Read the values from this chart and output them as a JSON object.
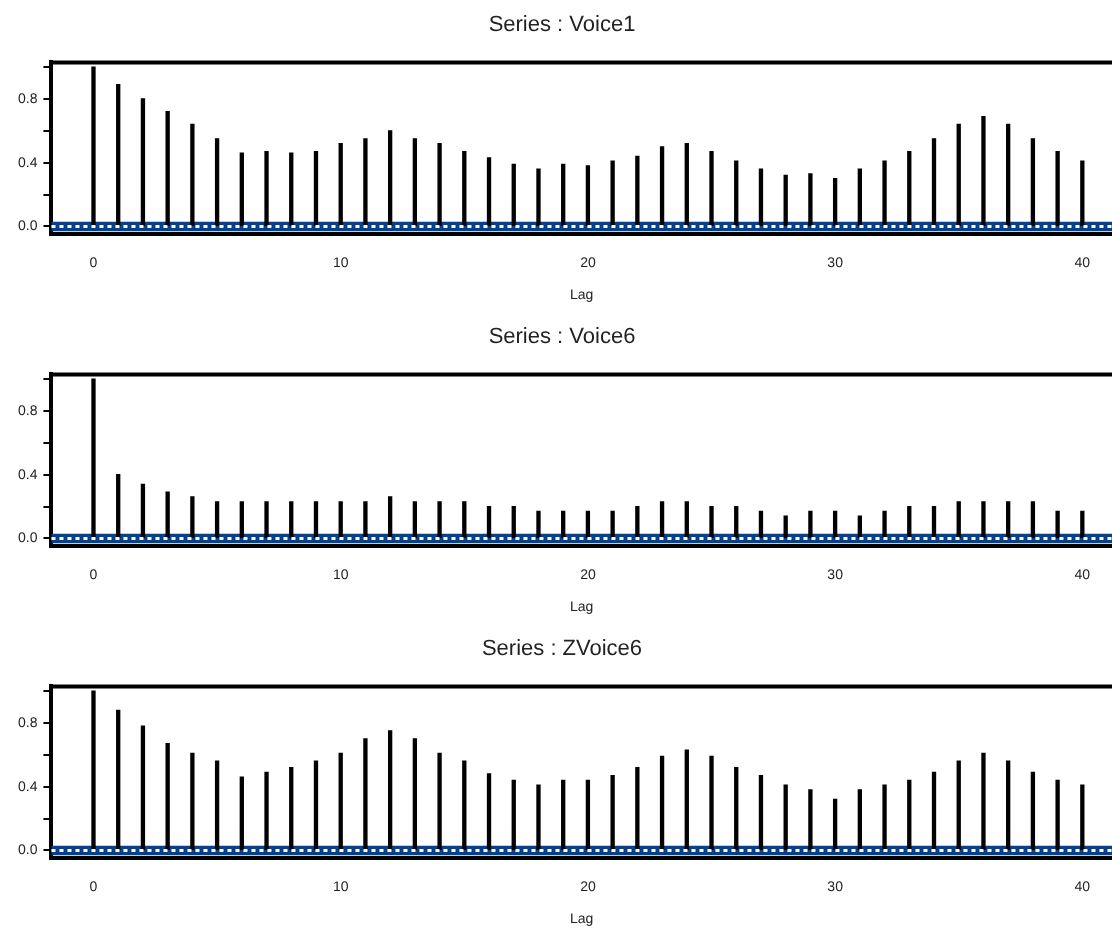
{
  "chart_data": [
    {
      "type": "bar",
      "title": "Series : Voice1",
      "xlabel": "Lag",
      "x": [
        0,
        1,
        2,
        3,
        4,
        5,
        6,
        7,
        8,
        9,
        10,
        11,
        12,
        13,
        14,
        15,
        16,
        17,
        18,
        19,
        20,
        21,
        22,
        23,
        24,
        25,
        26,
        27,
        28,
        29,
        30,
        31,
        32,
        33,
        34,
        35,
        36,
        37,
        38,
        39,
        40
      ],
      "series": [
        {
          "color": "#000000",
          "values": [
            1.0,
            0.89,
            0.8,
            0.72,
            0.64,
            0.55,
            0.46,
            0.47,
            0.46,
            0.47,
            0.52,
            0.55,
            0.6,
            0.55,
            0.52,
            0.47,
            0.43,
            0.39,
            0.36,
            0.39,
            0.38,
            0.41,
            0.44,
            0.5,
            0.52,
            0.47,
            0.41,
            0.36,
            0.32,
            0.33,
            0.3,
            0.36,
            0.41,
            0.47,
            0.55,
            0.64,
            0.69,
            0.64,
            0.55,
            0.47,
            0.41
          ]
        }
      ],
      "xlim": [
        -1.7,
        41.2
      ],
      "xticks": [
        0,
        10,
        20,
        30,
        40
      ],
      "ylim": [
        -0.05,
        1.03
      ],
      "yticks": [
        {
          "value": 0,
          "label": "0.0"
        },
        {
          "value": 0.2,
          "label": null
        },
        {
          "value": 0.4,
          "label": "0.4"
        },
        {
          "value": 0.6,
          "label": null
        },
        {
          "value": 0.8,
          "label": "0.8"
        },
        {
          "value": 1.0,
          "label": null
        }
      ],
      "bands": [
        {
          "axis": "y",
          "from": -0.03,
          "to": 0.03,
          "color": "#0b3f86"
        }
      ],
      "ref_lines": [
        {
          "axis": "y",
          "value": 0,
          "color": "#ffffff",
          "line_style": "dotted"
        }
      ],
      "grid": false,
      "legend": false
    },
    {
      "type": "bar",
      "title": "Series : Voice6",
      "xlabel": "Lag",
      "x": [
        0,
        1,
        2,
        3,
        4,
        5,
        6,
        7,
        8,
        9,
        10,
        11,
        12,
        13,
        14,
        15,
        16,
        17,
        18,
        19,
        20,
        21,
        22,
        23,
        24,
        25,
        26,
        27,
        28,
        29,
        30,
        31,
        32,
        33,
        34,
        35,
        36,
        37,
        38,
        39,
        40
      ],
      "series": [
        {
          "color": "#000000",
          "values": [
            1.0,
            0.4,
            0.34,
            0.29,
            0.26,
            0.23,
            0.23,
            0.23,
            0.23,
            0.23,
            0.23,
            0.23,
            0.26,
            0.23,
            0.23,
            0.23,
            0.2,
            0.2,
            0.17,
            0.17,
            0.17,
            0.17,
            0.2,
            0.23,
            0.23,
            0.2,
            0.2,
            0.17,
            0.14,
            0.17,
            0.17,
            0.14,
            0.17,
            0.2,
            0.2,
            0.23,
            0.23,
            0.23,
            0.23,
            0.17,
            0.17
          ]
        }
      ],
      "xlim": [
        -1.7,
        41.2
      ],
      "xticks": [
        0,
        10,
        20,
        30,
        40
      ],
      "ylim": [
        -0.05,
        1.03
      ],
      "yticks": [
        {
          "value": 0,
          "label": "0.0"
        },
        {
          "value": 0.2,
          "label": null
        },
        {
          "value": 0.4,
          "label": "0.4"
        },
        {
          "value": 0.6,
          "label": null
        },
        {
          "value": 0.8,
          "label": "0.8"
        },
        {
          "value": 1.0,
          "label": null
        }
      ],
      "bands": [
        {
          "axis": "y",
          "from": -0.03,
          "to": 0.03,
          "color": "#0b3f86"
        }
      ],
      "ref_lines": [
        {
          "axis": "y",
          "value": 0,
          "color": "#ffffff",
          "line_style": "dotted"
        }
      ],
      "grid": false,
      "legend": false
    },
    {
      "type": "bar",
      "title": "Series : ZVoice6",
      "xlabel": "Lag",
      "x": [
        0,
        1,
        2,
        3,
        4,
        5,
        6,
        7,
        8,
        9,
        10,
        11,
        12,
        13,
        14,
        15,
        16,
        17,
        18,
        19,
        20,
        21,
        22,
        23,
        24,
        25,
        26,
        27,
        28,
        29,
        30,
        31,
        32,
        33,
        34,
        35,
        36,
        37,
        38,
        39,
        40
      ],
      "series": [
        {
          "color": "#000000",
          "values": [
            1.0,
            0.88,
            0.78,
            0.67,
            0.61,
            0.56,
            0.46,
            0.49,
            0.52,
            0.56,
            0.61,
            0.7,
            0.75,
            0.7,
            0.61,
            0.56,
            0.48,
            0.44,
            0.41,
            0.44,
            0.44,
            0.47,
            0.52,
            0.59,
            0.63,
            0.59,
            0.52,
            0.47,
            0.41,
            0.38,
            0.32,
            0.38,
            0.41,
            0.44,
            0.49,
            0.56,
            0.61,
            0.56,
            0.49,
            0.44,
            0.41
          ]
        }
      ],
      "xlim": [
        -1.7,
        41.2
      ],
      "xticks": [
        0,
        10,
        20,
        30,
        40
      ],
      "ylim": [
        -0.05,
        1.03
      ],
      "yticks": [
        {
          "value": 0,
          "label": "0.0"
        },
        {
          "value": 0.2,
          "label": null
        },
        {
          "value": 0.4,
          "label": "0.4"
        },
        {
          "value": 0.6,
          "label": null
        },
        {
          "value": 0.8,
          "label": "0.8"
        },
        {
          "value": 1.0,
          "label": null
        }
      ],
      "bands": [
        {
          "axis": "y",
          "from": -0.03,
          "to": 0.03,
          "color": "#0b3f86"
        }
      ],
      "ref_lines": [
        {
          "axis": "y",
          "value": 0,
          "color": "#ffffff",
          "line_style": "dotted"
        }
      ],
      "grid": false,
      "legend": false
    }
  ]
}
